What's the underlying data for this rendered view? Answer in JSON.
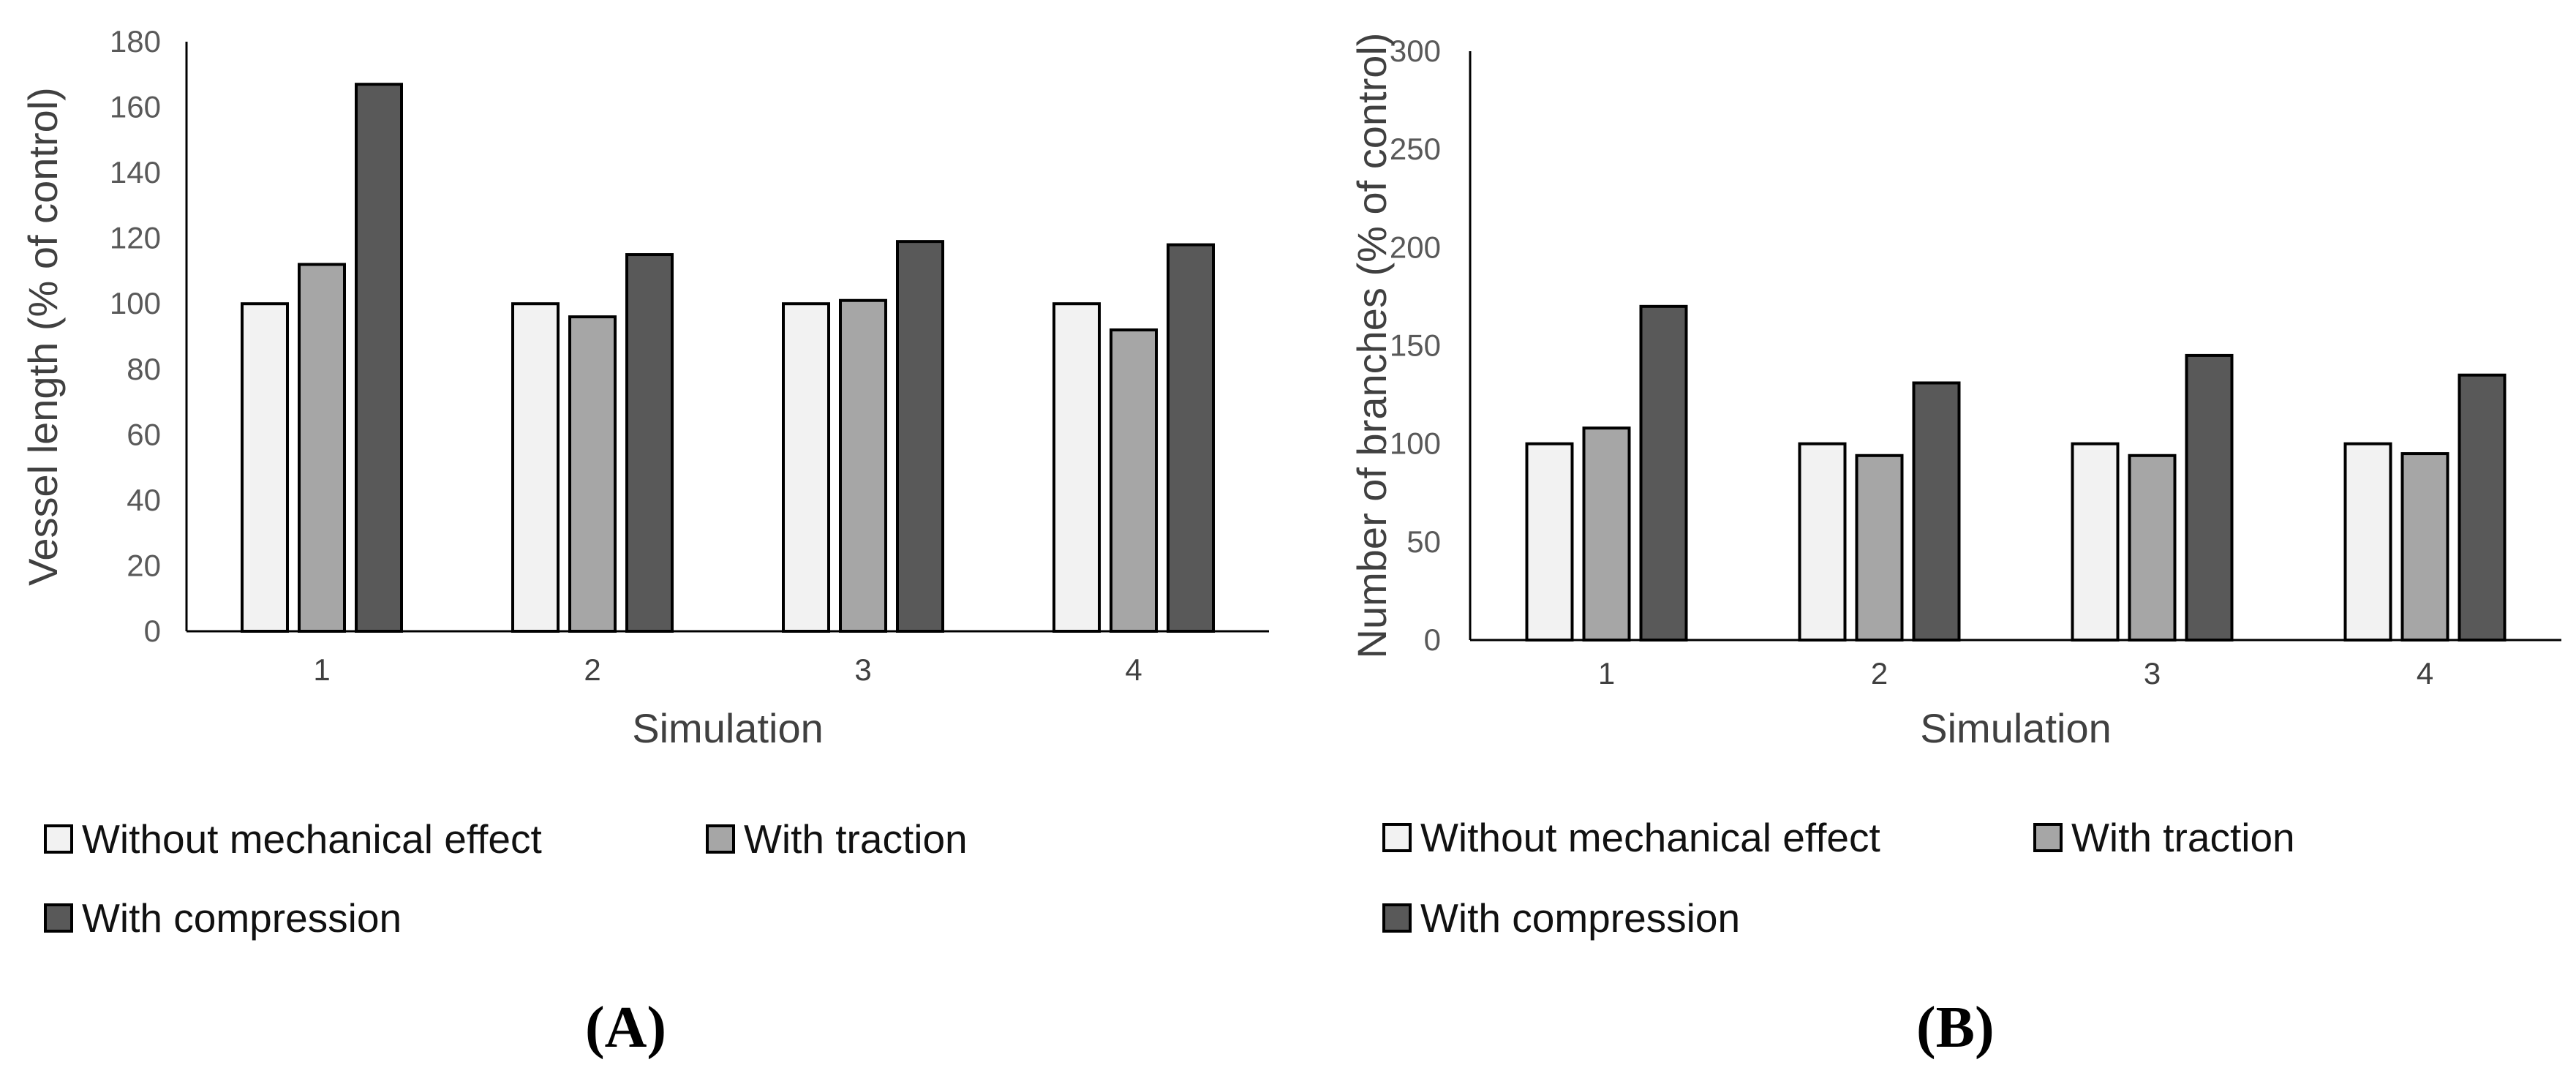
{
  "colors": {
    "without": "#f2f2f2",
    "traction": "#a6a6a6",
    "compression": "#595959",
    "axis": "#000000",
    "tick_text": "#595959"
  },
  "chart_data": [
    {
      "type": "bar",
      "panel_label": "(A)",
      "categories": [
        "1",
        "2",
        "3",
        "4"
      ],
      "series": [
        {
          "name": "Without mechanical effect",
          "values": [
            100,
            100,
            100,
            100
          ]
        },
        {
          "name": "With traction",
          "values": [
            112,
            96,
            101,
            92
          ]
        },
        {
          "name": "With compression",
          "values": [
            167,
            115,
            119,
            118
          ]
        }
      ],
      "xlabel": "Simulation",
      "ylabel": "Vessel length (% of control)",
      "ylim": [
        0,
        180
      ],
      "yticks": [
        0,
        20,
        40,
        60,
        80,
        100,
        120,
        140,
        160,
        180
      ],
      "grid": false,
      "legend_position": "bottom"
    },
    {
      "type": "bar",
      "panel_label": "(B)",
      "categories": [
        "1",
        "2",
        "3",
        "4"
      ],
      "series": [
        {
          "name": "Without mechanical effect",
          "values": [
            100,
            100,
            100,
            100
          ]
        },
        {
          "name": "With traction",
          "values": [
            108,
            94,
            94,
            95
          ]
        },
        {
          "name": "With compression",
          "values": [
            170,
            131,
            145,
            135
          ]
        }
      ],
      "xlabel": "Simulation",
      "ylabel": "Number of branches (% of control)",
      "ylim": [
        0,
        300
      ],
      "yticks": [
        0,
        50,
        100,
        150,
        200,
        250,
        300
      ],
      "grid": false,
      "legend_position": "bottom"
    }
  ]
}
